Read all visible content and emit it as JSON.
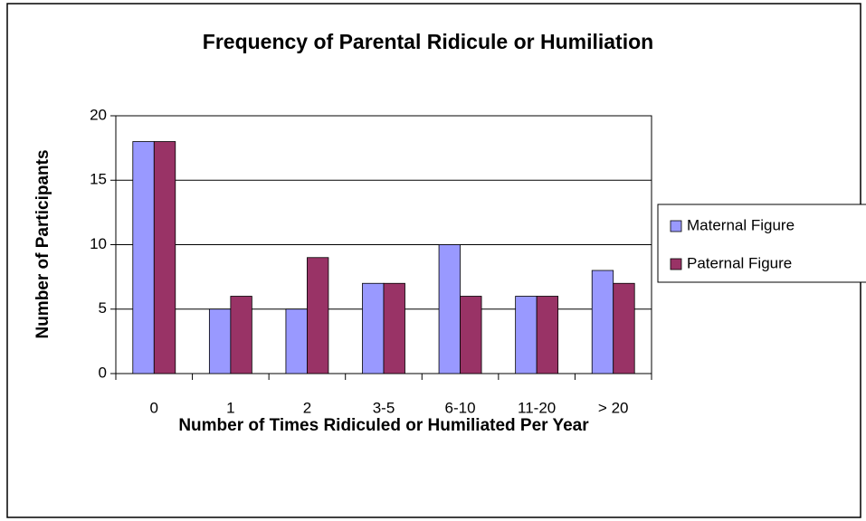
{
  "chart_data": {
    "type": "bar",
    "title": "Frequency of Parental Ridicule or Humiliation",
    "x_label": "Number of Times Ridiculed or Humiliated Per Year",
    "y_label": "Number of Participants",
    "categories": [
      "0",
      "1",
      "2",
      "3-5",
      "6-10",
      "11-20",
      "> 20"
    ],
    "series": [
      {
        "name": "Maternal Figure",
        "color": "#9999ff",
        "values": [
          18,
          5,
          5,
          7,
          10,
          6,
          8
        ]
      },
      {
        "name": "Paternal Figure",
        "color": "#993366",
        "values": [
          18,
          6,
          9,
          7,
          6,
          6,
          7
        ]
      }
    ],
    "ylim": [
      0,
      20
    ],
    "yticks": [
      0,
      5,
      10,
      15,
      20
    ],
    "grid": true,
    "legend": "right"
  }
}
